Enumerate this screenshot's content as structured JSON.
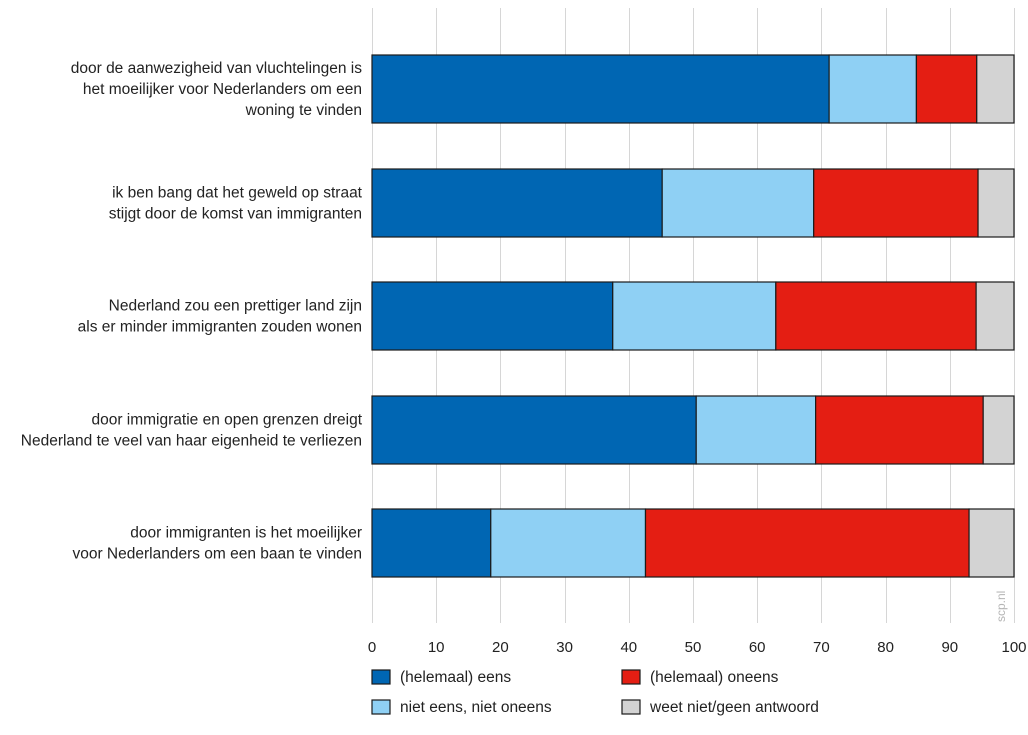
{
  "chart_data": {
    "type": "bar",
    "orientation": "horizontal",
    "stacked": true,
    "categories": [
      [
        "door de aanwezigheid van vluchtelingen is",
        "het moeilijker voor Nederlanders om een",
        "woning te vinden"
      ],
      [
        "ik ben bang dat het geweld op straat",
        "stijgt door de komst van immigranten"
      ],
      [
        "Nederland zou een prettiger land zijn",
        "als er minder immigranten zouden wonen"
      ],
      [
        "door immigratie en open grenzen dreigt",
        "Nederland te veel van haar eigenheid te verliezen"
      ],
      [
        "door immigranten is het moeilijker",
        "voor Nederlanders om een baan te vinden"
      ]
    ],
    "series": [
      {
        "name": "(helemaal) eens",
        "color": "#0066b3",
        "values": [
          71.2,
          45.2,
          37.5,
          50.5,
          18.5
        ]
      },
      {
        "name": "niet eens, niet oneens",
        "color": "#8fd0f4",
        "values": [
          13.6,
          23.6,
          25.4,
          18.6,
          24.1
        ]
      },
      {
        "name": "(helemaal) oneens",
        "color": "#e41e13",
        "values": [
          9.4,
          25.6,
          31.2,
          26.1,
          50.4
        ]
      },
      {
        "name": "weet niet/geen antwoord",
        "color": "#d3d3d3",
        "values": [
          5.8,
          5.6,
          5.9,
          4.8,
          7.0
        ]
      }
    ],
    "xlim": [
      0,
      100
    ],
    "xticks": [
      0,
      10,
      20,
      30,
      40,
      50,
      60,
      70,
      80,
      90,
      100
    ],
    "grid": true,
    "legend_position": "bottom",
    "watermark": "scp.nl"
  }
}
